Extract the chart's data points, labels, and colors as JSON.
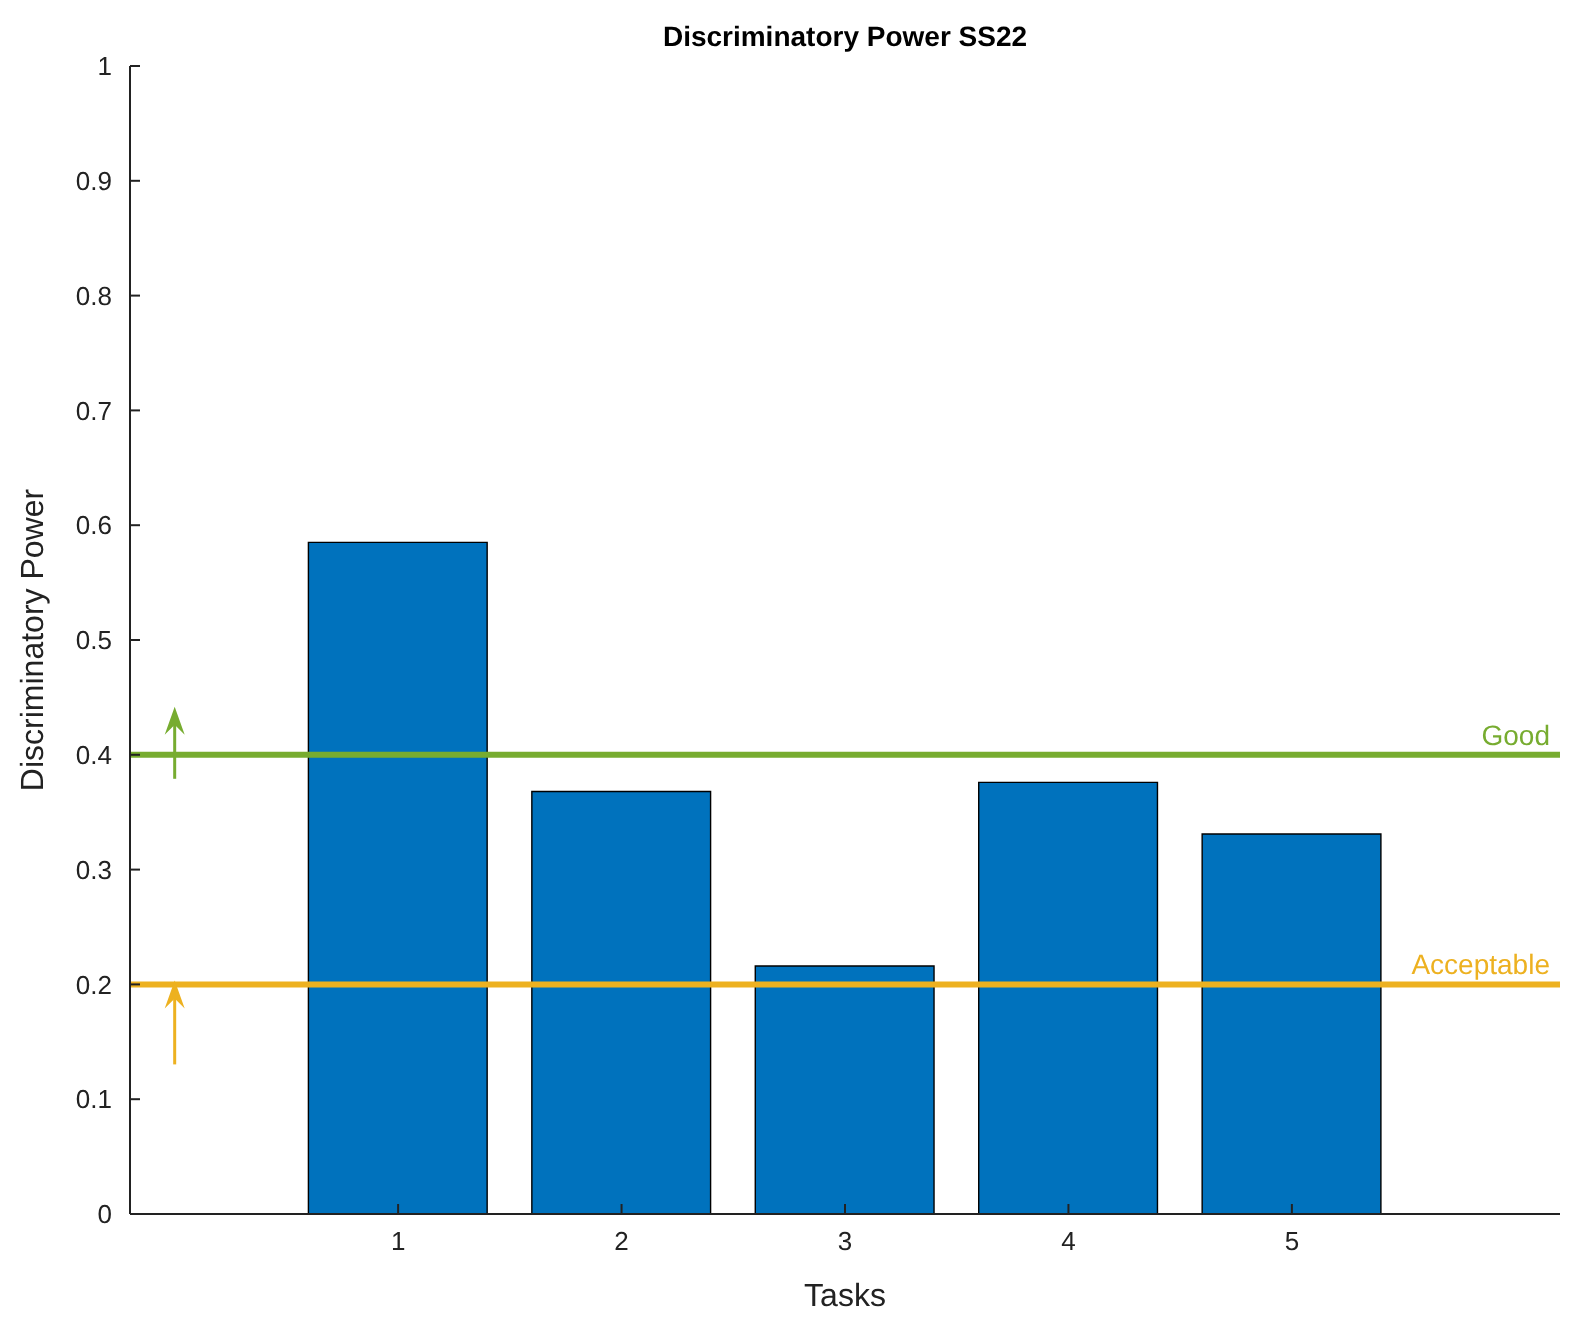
{
  "chart_data": {
    "type": "bar",
    "title": "Discriminatory Power SS22",
    "xlabel": "Tasks",
    "ylabel": "Discriminatory Power",
    "x": [
      1,
      2,
      3,
      4,
      5
    ],
    "values": [
      0.585,
      0.368,
      0.216,
      0.376,
      0.331
    ],
    "color": "#0072bd",
    "xlim": [
      -0.2,
      6.2
    ],
    "xticks": [
      1,
      2,
      3,
      4,
      5
    ],
    "ylim": [
      0,
      1
    ],
    "yticks": [
      0,
      0.1,
      0.2,
      0.3,
      0.4,
      0.5,
      0.6,
      0.7,
      0.8,
      0.9,
      1
    ],
    "grid": false,
    "legend": false,
    "ref_lines": [
      {
        "axis": "y",
        "value": 0.4,
        "label": "Good",
        "color": "#77ac30"
      },
      {
        "axis": "y",
        "value": 0.2,
        "label": "Acceptable",
        "color": "#edb120"
      }
    ]
  }
}
